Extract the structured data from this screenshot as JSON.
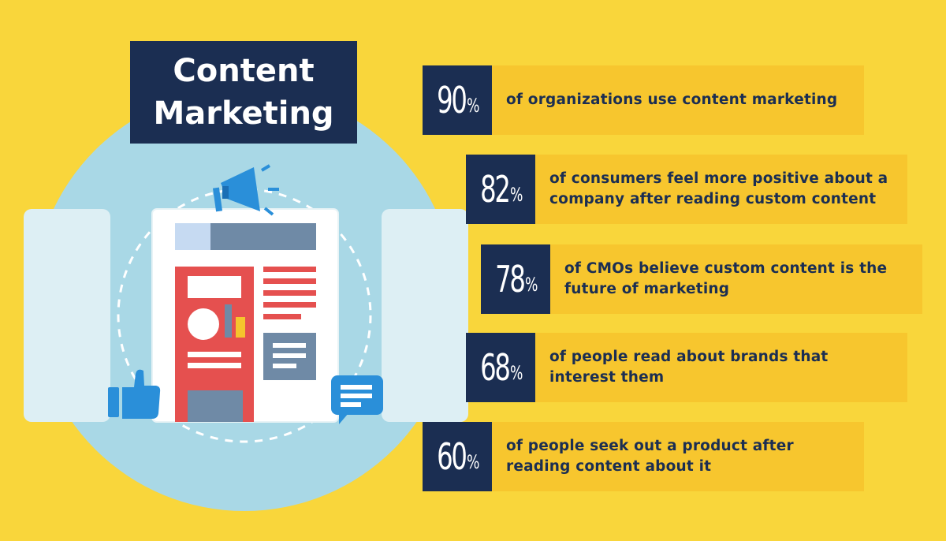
{
  "title": {
    "line1": "Content",
    "line2": "Marketing"
  },
  "colors": {
    "background": "#f9d63b",
    "stat_band": "#f7c62e",
    "navy": "#1b2e52",
    "circle": "#a9d8e6",
    "red": "#e5504f",
    "slate": "#6f8aa6",
    "blue": "#2a8fd9"
  },
  "stats": [
    {
      "number": "90",
      "percent": "%",
      "text": "of organizations use content marketing"
    },
    {
      "number": "82",
      "percent": "%",
      "text": "of consumers feel more positive about a company after reading custom content"
    },
    {
      "number": "78",
      "percent": "%",
      "text": "of CMOs believe custom content is the future of marketing"
    },
    {
      "number": "68",
      "percent": "%",
      "text": "of people read about brands that interest them"
    },
    {
      "number": "60",
      "percent": "%",
      "text": "of people seek out a product after reading content about it"
    }
  ],
  "icons": [
    "megaphone-icon",
    "thumbs-up-icon",
    "chat-bubble-icon",
    "document-icon"
  ]
}
